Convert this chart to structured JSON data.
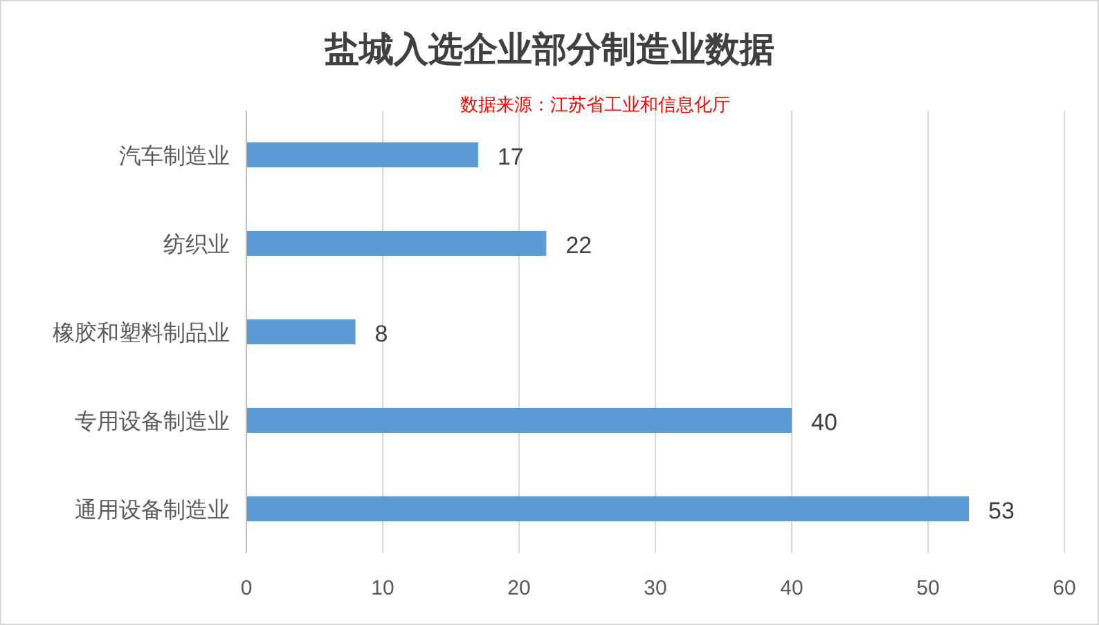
{
  "chart_data": {
    "type": "bar",
    "orientation": "horizontal",
    "title": "盐城入选企业部分制造业数据",
    "annotations": [
      "数据来源：江苏省工业和信息化厅"
    ],
    "categories": [
      "汽车制造业",
      "纺织业",
      "橡胶和塑料制品业",
      "专用设备制造业",
      "通用设备制造业"
    ],
    "values": [
      17,
      22,
      8,
      40,
      53
    ],
    "color": "#5b9bd5",
    "xlim": [
      0,
      60
    ],
    "xticks": [
      0,
      10,
      20,
      30,
      40,
      50,
      60
    ],
    "grid": "x",
    "data_labels": true
  }
}
